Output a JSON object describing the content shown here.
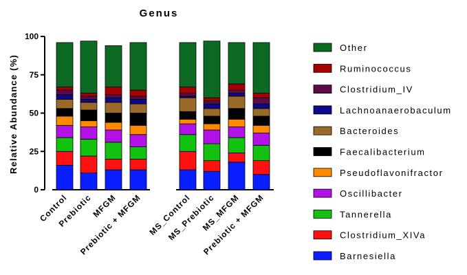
{
  "chart_data": {
    "type": "bar",
    "stacked": true,
    "title": "Genus",
    "xlabel": "",
    "ylabel": "Relative Abundance (%)",
    "ylim": [
      0,
      100
    ],
    "yticks": [
      "0",
      "25",
      "50",
      "75",
      "100"
    ],
    "categories": [
      "Control",
      "Prebiotic",
      "MFGM",
      "Prebiotic + MFGM",
      "MS_Control",
      "MS_Prebiotic",
      "MS_MFGM",
      "Prebiotic + MFGM"
    ],
    "groups": [
      [
        0,
        1,
        2,
        3
      ],
      [
        4,
        5,
        6,
        7
      ]
    ],
    "series": [
      {
        "name": "Barnesiella",
        "color": "#0a1fff",
        "values": [
          16,
          11,
          13,
          13,
          13,
          12,
          18,
          10
        ]
      },
      {
        "name": "Clostridium_XIVa",
        "color": "#ff1111",
        "values": [
          9,
          11,
          7,
          7,
          12,
          7,
          6,
          9
        ]
      },
      {
        "name": "Tannerella",
        "color": "#13c20f",
        "values": [
          9,
          11,
          11,
          8,
          11,
          11,
          10,
          10
        ]
      },
      {
        "name": "Oscillibacter",
        "color": "#b212e6",
        "values": [
          8,
          8,
          8,
          8,
          7,
          9,
          7,
          8
        ]
      },
      {
        "name": "Pseudoflavonifractor",
        "color": "#ff8a00",
        "values": [
          6,
          4,
          5,
          6,
          3,
          4,
          5,
          5
        ]
      },
      {
        "name": "Faecalibacterium",
        "color": "#000000",
        "values": [
          5,
          7,
          6,
          8,
          5,
          5,
          7,
          6
        ]
      },
      {
        "name": "Bacteroides",
        "color": "#9a6a2a",
        "values": [
          6,
          5,
          7,
          6,
          9,
          5,
          8,
          5
        ]
      },
      {
        "name": "Lachnoanaerobaculum",
        "color": "#0a0a8a",
        "values": [
          3,
          2,
          3,
          3,
          1,
          3,
          2,
          3
        ]
      },
      {
        "name": "Clostridium_IV",
        "color": "#5e0a4a",
        "values": [
          3,
          2,
          2,
          2,
          2,
          2,
          2,
          4
        ]
      },
      {
        "name": "Ruminococcus",
        "color": "#a80000",
        "values": [
          2,
          2,
          5,
          4,
          4,
          2,
          4,
          3
        ]
      },
      {
        "name": "Other",
        "color": "#0d6a23",
        "values": [
          29,
          34,
          27,
          31,
          29,
          37,
          27,
          33
        ]
      }
    ],
    "legend_position": "right",
    "grid": false
  }
}
